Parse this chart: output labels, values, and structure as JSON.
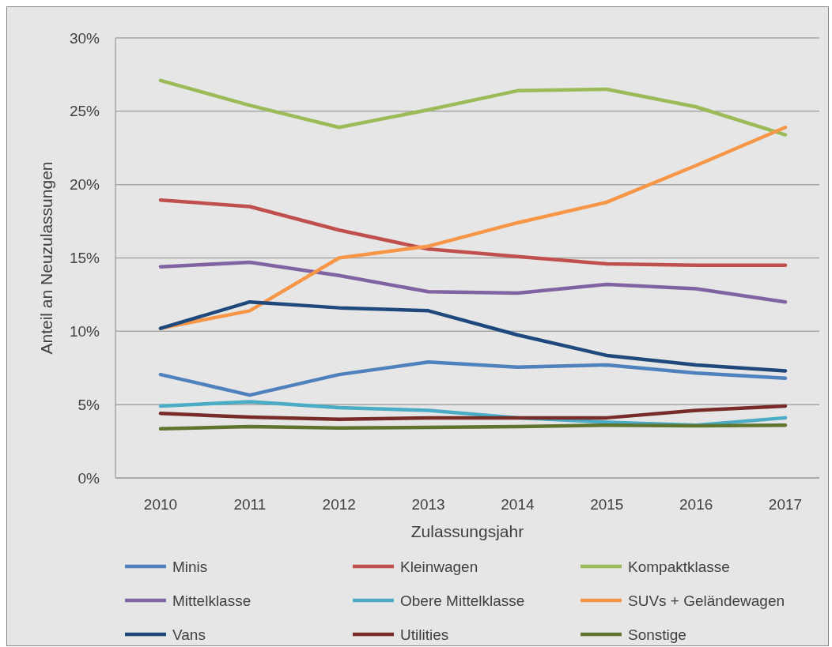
{
  "chart_data": {
    "type": "line",
    "xlabel": "Zulassungsjahr",
    "ylabel": "Anteil an Neuzulassungen",
    "categories": [
      "2010",
      "2011",
      "2012",
      "2013",
      "2014",
      "2015",
      "2016",
      "2017"
    ],
    "ylim": [
      0,
      30
    ],
    "yticks": [
      {
        "value": 0,
        "label": "0%"
      },
      {
        "value": 5,
        "label": "5%"
      },
      {
        "value": 10,
        "label": "10%"
      },
      {
        "value": 15,
        "label": "15%"
      },
      {
        "value": 20,
        "label": "20%"
      },
      {
        "value": 25,
        "label": "25%"
      },
      {
        "value": 30,
        "label": "30%"
      }
    ],
    "grid": "y",
    "legend": "bottom",
    "marker": "none",
    "line_style": "solid",
    "series": [
      {
        "name": "Minis",
        "color": "#4f81bd",
        "values": [
          7.05,
          5.65,
          7.05,
          7.9,
          7.55,
          7.7,
          7.15,
          6.8
        ]
      },
      {
        "name": "Kleinwagen",
        "color": "#c0504d",
        "values": [
          18.95,
          18.5,
          16.9,
          15.6,
          15.1,
          14.6,
          14.5,
          14.5
        ]
      },
      {
        "name": "Kompaktklasse",
        "color": "#9bbb59",
        "values": [
          27.1,
          25.4,
          23.9,
          25.1,
          26.4,
          26.5,
          25.3,
          23.4
        ]
      },
      {
        "name": "Mittelklasse",
        "color": "#8064a2",
        "values": [
          14.4,
          14.7,
          13.8,
          12.7,
          12.6,
          13.2,
          12.9,
          12.0
        ]
      },
      {
        "name": "Obere Mittelklasse",
        "color": "#4bacc6",
        "values": [
          4.9,
          5.2,
          4.8,
          4.6,
          4.1,
          3.8,
          3.6,
          4.1
        ]
      },
      {
        "name": "SUVs + Geländewagen",
        "color": "#f79646",
        "values": [
          10.2,
          11.4,
          15.0,
          15.8,
          17.4,
          18.8,
          21.3,
          23.9
        ]
      },
      {
        "name": "Vans",
        "color": "#1f497d",
        "values": [
          10.2,
          12.0,
          11.6,
          11.4,
          9.75,
          8.35,
          7.7,
          7.3
        ]
      },
      {
        "name": "Utilities",
        "color": "#772c2a",
        "values": [
          4.4,
          4.15,
          4.0,
          4.1,
          4.1,
          4.1,
          4.6,
          4.9
        ]
      },
      {
        "name": "Sonstige",
        "color": "#5f7530",
        "values": [
          3.35,
          3.5,
          3.4,
          3.45,
          3.5,
          3.6,
          3.55,
          3.6
        ]
      }
    ]
  }
}
